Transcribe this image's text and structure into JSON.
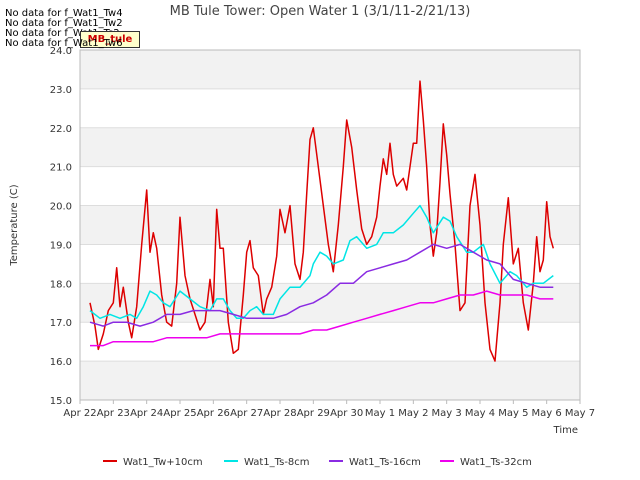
{
  "no_data_messages": [
    "No data for f_Wat1_Tw4",
    "No data for f_Wat1_Tw2",
    "No data for f_Wat1_Ts2",
    "No data for f_Wat1_Tw6"
  ],
  "watermark_label": "MB_tule",
  "chart_data": {
    "type": "line",
    "title": "MB Tule Tower: Open Water 1 (3/1/11-2/21/13)",
    "xlabel": "Time",
    "ylabel": "Temperature (C)",
    "ylim": [
      15.0,
      24.0
    ],
    "xlim": [
      0,
      15
    ],
    "yticks": [
      15.0,
      16.0,
      17.0,
      18.0,
      19.0,
      20.0,
      21.0,
      22.0,
      23.0,
      24.0
    ],
    "xtick_labels": [
      "Apr 22",
      "Apr 23",
      "Apr 24",
      "Apr 25",
      "Apr 26",
      "Apr 27",
      "Apr 28",
      "Apr 29",
      "Apr 30",
      "May 1",
      "May 2",
      "May 3",
      "May 4",
      "May 5",
      "May 6",
      "May 7"
    ],
    "grid": true,
    "legend_position": "bottom",
    "series": [
      {
        "name": "Wat1_Tw+10cm",
        "color": "#dd0000",
        "x": [
          0.3,
          0.45,
          0.55,
          0.7,
          0.85,
          1.0,
          1.1,
          1.2,
          1.3,
          1.45,
          1.55,
          1.7,
          1.85,
          2.0,
          2.1,
          2.2,
          2.3,
          2.45,
          2.6,
          2.75,
          2.9,
          3.0,
          3.15,
          3.3,
          3.45,
          3.6,
          3.75,
          3.9,
          4.0,
          4.1,
          4.2,
          4.3,
          4.45,
          4.6,
          4.75,
          4.9,
          5.0,
          5.1,
          5.2,
          5.35,
          5.5,
          5.6,
          5.75,
          5.9,
          6.0,
          6.15,
          6.3,
          6.45,
          6.6,
          6.7,
          6.8,
          6.9,
          7.0,
          7.15,
          7.3,
          7.45,
          7.6,
          7.75,
          7.9,
          8.0,
          8.15,
          8.3,
          8.45,
          8.6,
          8.75,
          8.9,
          9.0,
          9.1,
          9.2,
          9.3,
          9.4,
          9.5,
          9.6,
          9.7,
          9.8,
          9.9,
          10.0,
          10.1,
          10.2,
          10.3,
          10.4,
          10.5,
          10.6,
          10.7,
          10.8,
          10.9,
          11.0,
          11.1,
          11.25,
          11.4,
          11.55,
          11.7,
          11.85,
          12.0,
          12.15,
          12.3,
          12.45,
          12.6,
          12.7,
          12.85,
          13.0,
          13.15,
          13.3,
          13.45,
          13.6,
          13.7,
          13.8,
          13.9,
          14.0,
          14.1,
          14.2
        ],
        "values": [
          17.5,
          16.9,
          16.3,
          16.7,
          17.3,
          17.5,
          18.4,
          17.4,
          17.9,
          17.0,
          16.6,
          17.4,
          19.0,
          20.4,
          18.8,
          19.3,
          18.9,
          17.7,
          17.0,
          16.9,
          18.0,
          19.7,
          18.2,
          17.6,
          17.2,
          16.8,
          17.0,
          18.1,
          17.4,
          19.9,
          18.9,
          18.9,
          17.0,
          16.2,
          16.3,
          17.7,
          18.8,
          19.1,
          18.4,
          18.2,
          17.2,
          17.6,
          17.9,
          18.7,
          19.9,
          19.3,
          20.0,
          18.5,
          18.1,
          18.8,
          20.3,
          21.7,
          22.0,
          21.0,
          20.0,
          19.0,
          18.3,
          19.5,
          21.0,
          22.2,
          21.5,
          20.4,
          19.4,
          19.0,
          19.2,
          19.7,
          20.5,
          21.2,
          20.8,
          21.6,
          20.8,
          20.5,
          20.6,
          20.7,
          20.4,
          21.0,
          21.6,
          21.6,
          23.2,
          22.2,
          21.0,
          19.5,
          18.7,
          19.3,
          20.6,
          22.1,
          21.3,
          20.3,
          19.0,
          17.3,
          17.5,
          20.0,
          20.8,
          19.5,
          17.5,
          16.3,
          16.0,
          17.5,
          19.0,
          20.2,
          18.5,
          18.9,
          17.5,
          16.8,
          18.0,
          19.2,
          18.3,
          18.6,
          20.1,
          19.2,
          18.9
        ]
      },
      {
        "name": "Wat1_Ts-8cm",
        "color": "#00e5e5",
        "x": [
          0.3,
          0.6,
          0.9,
          1.2,
          1.5,
          1.7,
          1.9,
          2.1,
          2.3,
          2.5,
          2.7,
          3.0,
          3.3,
          3.6,
          3.9,
          4.1,
          4.3,
          4.5,
          4.7,
          4.9,
          5.1,
          5.3,
          5.5,
          5.8,
          6.0,
          6.3,
          6.6,
          6.9,
          7.0,
          7.2,
          7.4,
          7.6,
          7.9,
          8.1,
          8.3,
          8.6,
          8.9,
          9.1,
          9.4,
          9.7,
          10.0,
          10.2,
          10.4,
          10.6,
          10.9,
          11.1,
          11.3,
          11.6,
          11.8,
          12.1,
          12.3,
          12.6,
          12.9,
          13.1,
          13.4,
          13.6,
          13.9,
          14.2
        ],
        "values": [
          17.3,
          17.1,
          17.2,
          17.1,
          17.2,
          17.1,
          17.4,
          17.8,
          17.7,
          17.5,
          17.4,
          17.8,
          17.6,
          17.4,
          17.3,
          17.6,
          17.6,
          17.3,
          17.1,
          17.1,
          17.3,
          17.4,
          17.2,
          17.2,
          17.6,
          17.9,
          17.9,
          18.2,
          18.5,
          18.8,
          18.7,
          18.5,
          18.6,
          19.1,
          19.2,
          18.9,
          19.0,
          19.3,
          19.3,
          19.5,
          19.8,
          20.0,
          19.7,
          19.3,
          19.7,
          19.6,
          19.2,
          18.8,
          18.8,
          19.0,
          18.5,
          18.0,
          18.3,
          18.2,
          17.9,
          18.0,
          18.0,
          18.2
        ]
      },
      {
        "name": "Wat1_Ts-16cm",
        "color": "#8a2be2",
        "x": [
          0.3,
          0.7,
          1.0,
          1.4,
          1.8,
          2.2,
          2.6,
          3.0,
          3.4,
          3.8,
          4.2,
          4.6,
          5.0,
          5.4,
          5.8,
          6.2,
          6.6,
          7.0,
          7.4,
          7.8,
          8.2,
          8.6,
          9.0,
          9.4,
          9.8,
          10.2,
          10.6,
          11.0,
          11.4,
          11.8,
          12.2,
          12.6,
          13.0,
          13.4,
          13.8,
          14.2
        ],
        "values": [
          17.0,
          16.9,
          17.0,
          17.0,
          16.9,
          17.0,
          17.2,
          17.2,
          17.3,
          17.3,
          17.3,
          17.2,
          17.1,
          17.1,
          17.1,
          17.2,
          17.4,
          17.5,
          17.7,
          18.0,
          18.0,
          18.3,
          18.4,
          18.5,
          18.6,
          18.8,
          19.0,
          18.9,
          19.0,
          18.8,
          18.6,
          18.5,
          18.1,
          18.0,
          17.9,
          17.9
        ]
      },
      {
        "name": "Wat1_Ts-32cm",
        "color": "#ee00ee",
        "x": [
          0.3,
          0.7,
          1.0,
          1.4,
          1.8,
          2.2,
          2.6,
          3.0,
          3.4,
          3.8,
          4.2,
          4.6,
          5.0,
          5.4,
          5.8,
          6.2,
          6.6,
          7.0,
          7.4,
          7.8,
          8.2,
          8.6,
          9.0,
          9.4,
          9.8,
          10.2,
          10.6,
          11.0,
          11.4,
          11.8,
          12.2,
          12.6,
          13.0,
          13.4,
          13.8,
          14.2
        ],
        "values": [
          16.4,
          16.4,
          16.5,
          16.5,
          16.5,
          16.5,
          16.6,
          16.6,
          16.6,
          16.6,
          16.7,
          16.7,
          16.7,
          16.7,
          16.7,
          16.7,
          16.7,
          16.8,
          16.8,
          16.9,
          17.0,
          17.1,
          17.2,
          17.3,
          17.4,
          17.5,
          17.5,
          17.6,
          17.7,
          17.7,
          17.8,
          17.7,
          17.7,
          17.7,
          17.6,
          17.6
        ]
      }
    ]
  }
}
